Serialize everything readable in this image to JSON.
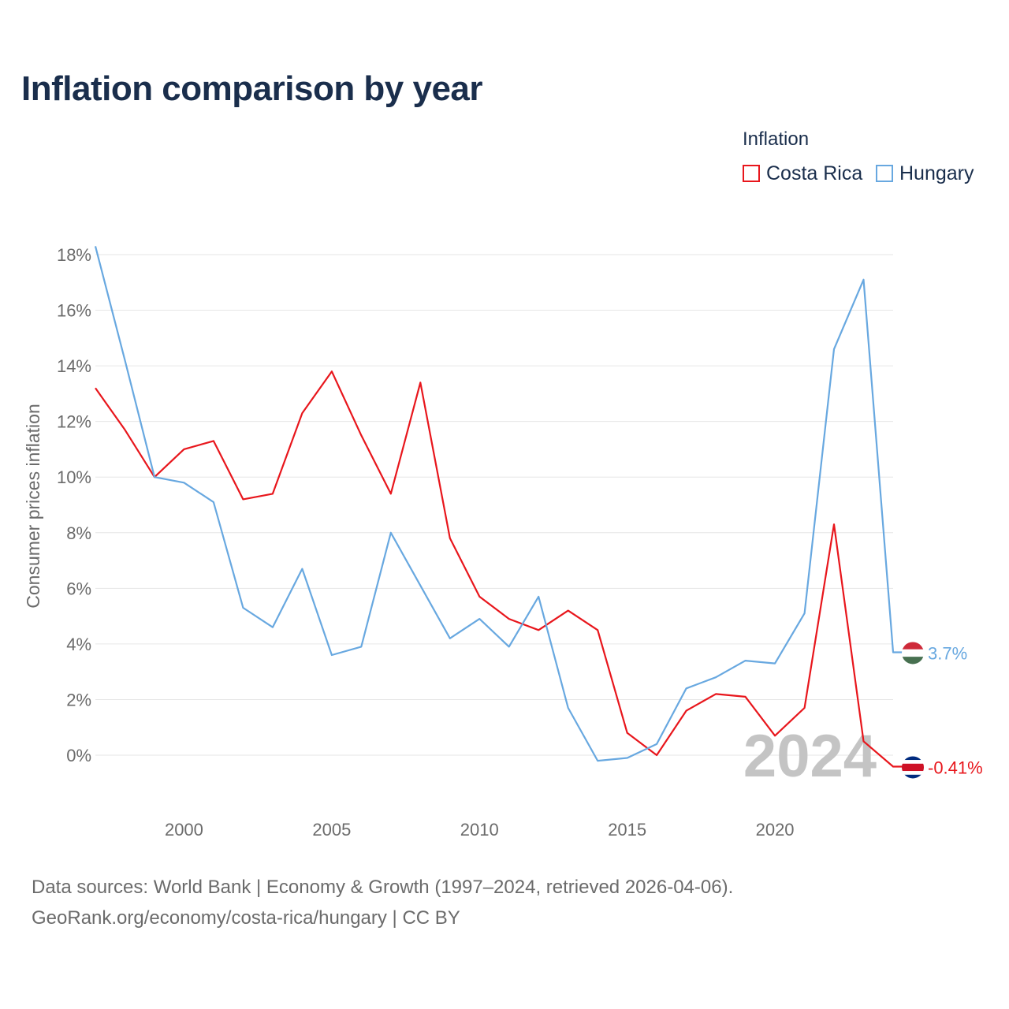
{
  "title": "Inflation comparison by year",
  "legend": {
    "title": "Inflation",
    "items": [
      {
        "label": "Costa Rica",
        "color": "#e8161c"
      },
      {
        "label": "Hungary",
        "color": "#68a8e0"
      }
    ]
  },
  "footer": {
    "line1": "Data sources: World Bank | Economy & Growth (1997–2024, retrieved 2026-04-06).",
    "line2": "GeoRank.org/economy/costa-rica/hungary | CC BY"
  },
  "chart_data": {
    "type": "line",
    "title": "Inflation comparison by year",
    "xlabel": "",
    "ylabel": "Consumer prices inflation",
    "x": [
      1997,
      1998,
      1999,
      2000,
      2001,
      2002,
      2003,
      2004,
      2005,
      2006,
      2007,
      2008,
      2009,
      2010,
      2011,
      2012,
      2013,
      2014,
      2015,
      2016,
      2017,
      2018,
      2019,
      2020,
      2021,
      2022,
      2023,
      2024
    ],
    "xlim": [
      1997,
      2024
    ],
    "ylim": [
      -1.5,
      18
    ],
    "xticks": [
      {
        "value": 2000,
        "label": "2000"
      },
      {
        "value": 2005,
        "label": "2005"
      },
      {
        "value": 2010,
        "label": "2010"
      },
      {
        "value": 2015,
        "label": "2015"
      },
      {
        "value": 2020,
        "label": "2020"
      }
    ],
    "yticks": [
      {
        "value": 18,
        "label": "18%"
      },
      {
        "value": 16,
        "label": "16%"
      },
      {
        "value": 14,
        "label": "14%"
      },
      {
        "value": 12,
        "label": "12%"
      },
      {
        "value": 10,
        "label": "10%"
      },
      {
        "value": 8,
        "label": "8%"
      },
      {
        "value": 6,
        "label": "6%"
      },
      {
        "value": 4,
        "label": "4%"
      },
      {
        "value": 2,
        "label": "2%"
      },
      {
        "value": 0,
        "label": "0%"
      }
    ],
    "grid": true,
    "year_watermark": "2024",
    "series": [
      {
        "name": "Costa Rica",
        "color": "#e8161c",
        "end_label": "-0.41%",
        "flag": "costa-rica-flag-icon",
        "values": [
          13.2,
          11.7,
          10.0,
          11.0,
          11.3,
          9.2,
          9.4,
          12.3,
          13.8,
          11.5,
          9.4,
          13.4,
          7.8,
          5.7,
          4.9,
          4.5,
          5.2,
          4.5,
          0.8,
          0.0,
          1.6,
          2.2,
          2.1,
          0.7,
          1.7,
          8.3,
          0.5,
          -0.41
        ]
      },
      {
        "name": "Hungary",
        "color": "#68a8e0",
        "end_label": "3.7%",
        "flag": "hungary-flag-icon",
        "values": [
          18.3,
          14.2,
          10.0,
          9.8,
          9.1,
          5.3,
          4.6,
          6.7,
          3.6,
          3.9,
          8.0,
          6.1,
          4.2,
          4.9,
          3.9,
          5.7,
          1.7,
          -0.2,
          -0.1,
          0.4,
          2.4,
          2.8,
          3.4,
          3.3,
          5.1,
          14.6,
          17.1,
          3.7
        ]
      }
    ]
  }
}
